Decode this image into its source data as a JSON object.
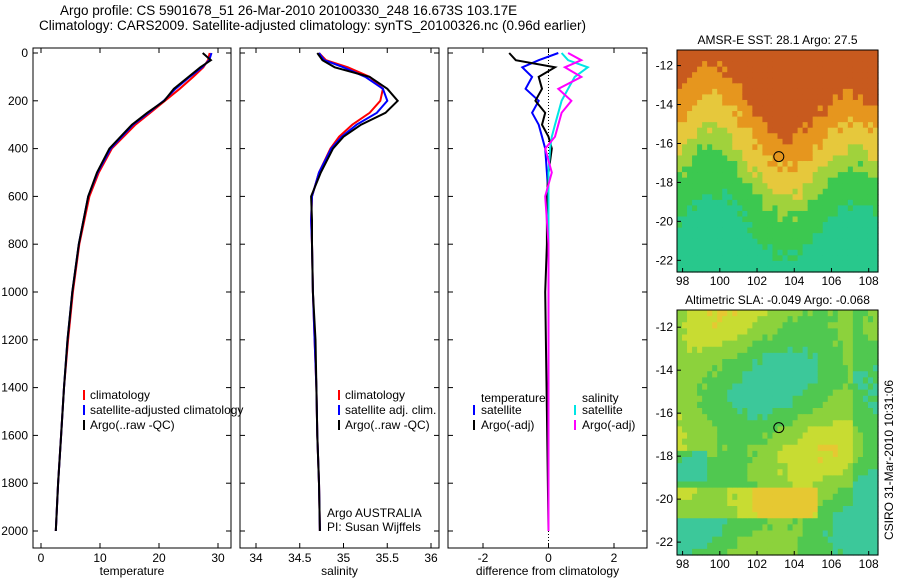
{
  "title_line1": "Argo profile: CS 5901678_51 26-Mar-2010 20100330_248 16.673S 103.17E",
  "title_line2": "Climatology: CARS2009. Satellite-adjusted climatology: synTS_20100326.nc (0.96d earlier)",
  "side_label": "CSIRO 31-Mar-2010 10:31:06",
  "colors": {
    "climatology": "#ff0000",
    "satellite": "#0000ff",
    "argo": "#000000",
    "sal_satellite": "#00e5e5",
    "sal_argo": "#ff00ff"
  },
  "chart_data": [
    {
      "type": "line",
      "xlabel": "temperature",
      "ylabel": "",
      "xlim": [
        -1,
        31
      ],
      "ylim": [
        2000,
        0
      ],
      "xticks": [
        0,
        10,
        20,
        30
      ],
      "yticks": [
        0,
        200,
        400,
        600,
        800,
        1000,
        1200,
        1400,
        1600,
        1800,
        2000
      ],
      "depth": [
        0,
        30,
        60,
        100,
        150,
        200,
        250,
        300,
        400,
        500,
        600,
        800,
        1000,
        1200,
        1400,
        1600,
        1800,
        2000
      ],
      "series": [
        {
          "name": "climatology",
          "values": [
            28.6,
            28.3,
            27.5,
            25.8,
            23.5,
            21.0,
            18.5,
            16.0,
            12.0,
            9.8,
            8.2,
            6.5,
            5.4,
            4.6,
            3.9,
            3.4,
            2.9,
            2.5
          ]
        },
        {
          "name": "satellite-adjusted climatology",
          "values": [
            28.9,
            28.5,
            27.3,
            25.2,
            22.8,
            20.8,
            18.2,
            15.6,
            11.8,
            9.6,
            8.0,
            6.4,
            5.3,
            4.5,
            3.9,
            3.4,
            2.9,
            2.5
          ]
        },
        {
          "name": "Argo(..raw -QC)",
          "values": [
            27.4,
            28.8,
            27.0,
            25.0,
            22.5,
            20.9,
            18.0,
            15.4,
            11.6,
            9.5,
            8.0,
            6.4,
            5.3,
            4.5,
            3.9,
            3.4,
            2.9,
            2.5
          ]
        }
      ],
      "legend": [
        "climatology",
        "satellite-adjusted climatology",
        "Argo(..raw -QC)"
      ]
    },
    {
      "type": "line",
      "xlabel": "salinity",
      "xlim": [
        33.85,
        36.1
      ],
      "ylim": [
        2000,
        0
      ],
      "xticks": [
        34,
        34.5,
        35,
        35.5,
        36
      ],
      "depth": [
        0,
        30,
        60,
        100,
        150,
        200,
        250,
        300,
        350,
        400,
        500,
        600,
        700,
        800,
        1000,
        1200,
        1400,
        1600,
        1800,
        2000
      ],
      "series": [
        {
          "name": "climatology",
          "values": [
            34.72,
            34.8,
            35.05,
            35.3,
            35.45,
            35.42,
            35.3,
            35.1,
            34.95,
            34.85,
            34.72,
            34.64,
            34.63,
            34.64,
            34.65,
            34.67,
            34.69,
            34.7,
            34.72,
            34.73
          ]
        },
        {
          "name": "satellite adj. clim.",
          "values": [
            34.72,
            34.78,
            35.0,
            35.25,
            35.45,
            35.5,
            35.38,
            35.15,
            34.98,
            34.86,
            34.72,
            34.64,
            34.63,
            34.64,
            34.65,
            34.67,
            34.69,
            34.7,
            34.72,
            34.73
          ]
        },
        {
          "name": "Argo(..raw -QC)",
          "values": [
            34.7,
            34.76,
            34.9,
            35.3,
            35.5,
            35.62,
            35.48,
            35.2,
            35.0,
            34.88,
            34.74,
            34.63,
            34.64,
            34.64,
            34.65,
            34.68,
            34.69,
            34.7,
            34.72,
            34.73
          ]
        }
      ],
      "legend": [
        "climatology",
        "satellite adj. clim.",
        "Argo(..raw -QC)"
      ],
      "annotation": [
        "Argo AUSTRALIA",
        "PI: Susan Wijffels"
      ]
    },
    {
      "type": "line",
      "xlabel": "difference from climatology",
      "xlim": [
        -3,
        3
      ],
      "ylim": [
        2000,
        0
      ],
      "xticks": [
        -2,
        0,
        2
      ],
      "depth": [
        0,
        30,
        60,
        100,
        150,
        200,
        250,
        300,
        350,
        400,
        500,
        600,
        800,
        1000,
        1500,
        2000
      ],
      "series": [
        {
          "name": "temperature satellite",
          "values": [
            0.3,
            -0.3,
            -0.8,
            -0.5,
            -0.7,
            -0.3,
            -0.5,
            -0.3,
            -0.2,
            -0.1,
            -0.05,
            0,
            0,
            0,
            0,
            0
          ]
        },
        {
          "name": "temperature Argo(-adj)",
          "values": [
            -1.2,
            -1.0,
            0.2,
            -0.3,
            -0.2,
            -0.4,
            -0.1,
            -0.2,
            0,
            0.1,
            0,
            -0.05,
            -0.05,
            -0.1,
            -0.05,
            0
          ]
        },
        {
          "name": "salinity satellite",
          "values": [
            0.4,
            0.6,
            1.2,
            0.8,
            0.6,
            0.4,
            0.3,
            0.2,
            0.1,
            0.05,
            0,
            0,
            0,
            0,
            0,
            0
          ]
        },
        {
          "name": "salinity Argo(-adj)",
          "values": [
            0.6,
            1.0,
            0.5,
            1.0,
            0.3,
            0.7,
            0.4,
            0.3,
            0.2,
            -0.1,
            0.1,
            -0.1,
            0,
            0,
            0,
            0
          ]
        }
      ],
      "legend_temperature_header": "temperature",
      "legend_salinity_header": "salinity",
      "legend": [
        "satellite",
        "Argo(-adj)",
        "satellite",
        "Argo(-adj)"
      ]
    },
    {
      "type": "heatmap",
      "title": "AMSR-E SST: 28.1 Argo: 27.5",
      "xticks": [
        98,
        100,
        102,
        104,
        106,
        108
      ],
      "yticks": [
        -12,
        -14,
        -16,
        -18,
        -20,
        -22
      ],
      "xlim": [
        97.7,
        108.5
      ],
      "ylim": [
        -22.6,
        -11.2
      ],
      "marker": [
        103.17,
        -16.673
      ]
    },
    {
      "type": "heatmap",
      "title": "Altimetric SLA: -0.049 Argo: -0.068",
      "xticks": [
        98,
        100,
        102,
        104,
        106,
        108
      ],
      "yticks": [
        -12,
        -14,
        -16,
        -18,
        -20,
        -22
      ],
      "xlim": [
        97.7,
        108.5
      ],
      "ylim": [
        -22.6,
        -11.2
      ],
      "marker": [
        103.17,
        -16.673
      ]
    }
  ]
}
